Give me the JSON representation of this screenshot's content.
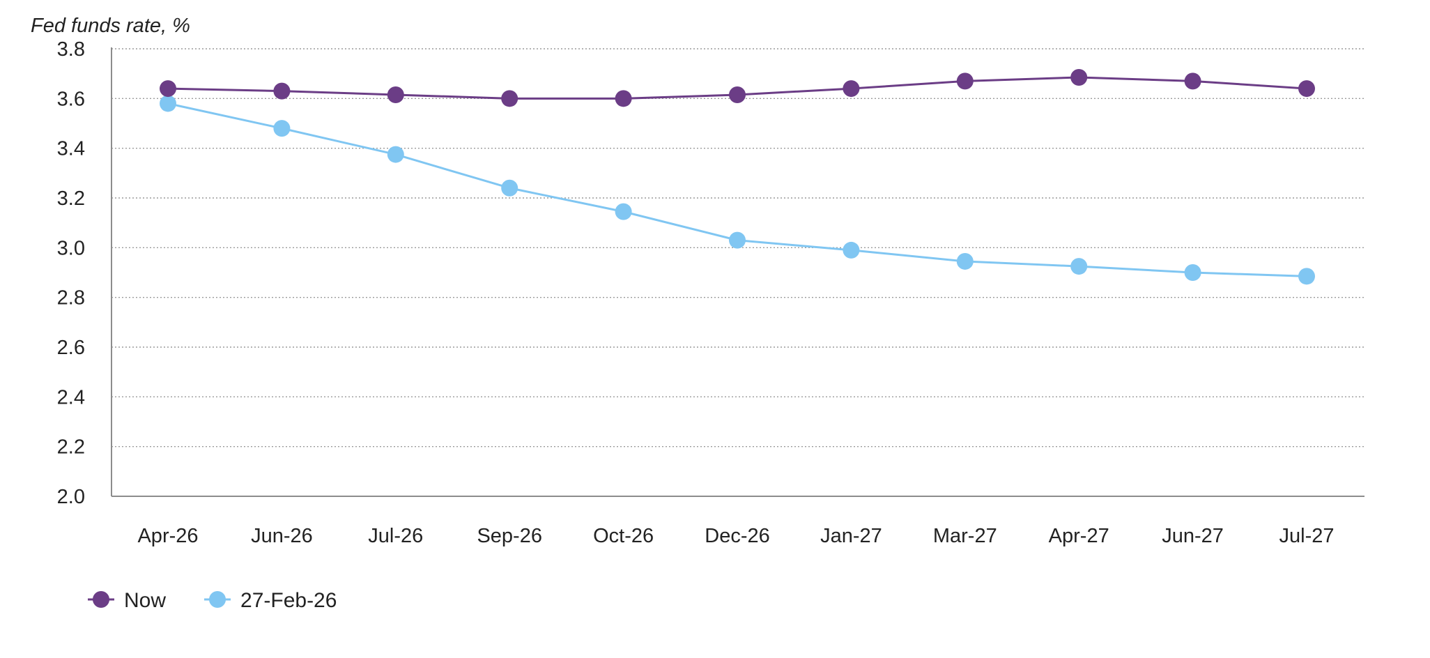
{
  "chart_data": {
    "type": "line",
    "ylabel": "Fed funds rate, %",
    "xlabel": "",
    "categories": [
      "Apr-26",
      "Jun-26",
      "Jul-26",
      "Sep-26",
      "Oct-26",
      "Dec-26",
      "Jan-27",
      "Mar-27",
      "Apr-27",
      "Jun-27",
      "Jul-27"
    ],
    "ylim": [
      2.0,
      3.8
    ],
    "yticks": [
      "2.0",
      "2.2",
      "2.4",
      "2.6",
      "2.8",
      "3.0",
      "3.2",
      "3.4",
      "3.6",
      "3.8"
    ],
    "grid": "horizontal dotted",
    "legend_position": "bottom-left",
    "series": [
      {
        "name": "Now",
        "color": "#6b3d86",
        "values": [
          3.64,
          3.63,
          3.615,
          3.6,
          3.6,
          3.615,
          3.64,
          3.67,
          3.685,
          3.67,
          3.64
        ]
      },
      {
        "name": "27-Feb-26",
        "color": "#80c6f2",
        "values": [
          3.58,
          3.48,
          3.375,
          3.24,
          3.145,
          3.03,
          2.99,
          2.945,
          2.925,
          2.9,
          2.885
        ]
      }
    ]
  }
}
